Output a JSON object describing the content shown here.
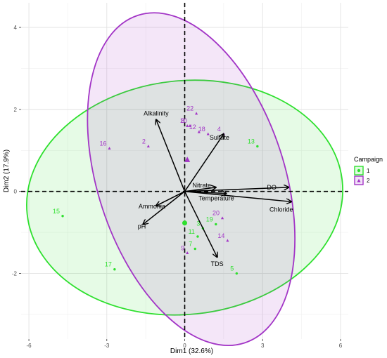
{
  "chart_data": {
    "type": "scatter",
    "title": "",
    "xlabel": "Dim1 (32.6%)",
    "ylabel": "Dim2 (17.9%)",
    "xlim": [
      -6.3,
      6.3
    ],
    "ylim": [
      -3.6,
      4.6
    ],
    "x_ticks": [
      -6,
      -3,
      0,
      3,
      6
    ],
    "y_ticks": [
      -2,
      0,
      2,
      4
    ],
    "grid": true,
    "legend": {
      "title": "Campaign",
      "position": "right"
    },
    "colors": {
      "campaign1": "#2ee02e",
      "campaign2": "#a234c6"
    },
    "series": [
      {
        "name": "1",
        "marker": "circle",
        "points": [
          {
            "label": "15",
            "x": -4.7,
            "y": -0.6
          },
          {
            "label": "17",
            "x": -2.7,
            "y": -1.9
          },
          {
            "label": "13",
            "x": 2.8,
            "y": 1.1
          },
          {
            "label": "5",
            "x": 2.0,
            "y": -2.0
          },
          {
            "label": "3",
            "x": 0.7,
            "y": -0.9
          },
          {
            "label": "19",
            "x": 1.2,
            "y": -0.8
          },
          {
            "label": "11",
            "x": 0.5,
            "y": -1.1
          },
          {
            "label": "7",
            "x": 0.4,
            "y": -1.4
          }
        ],
        "centroid": {
          "x": 0.0,
          "y": -0.77
        },
        "ellipse": {
          "cx": 0.0,
          "cy": -0.15,
          "rx": 6.1,
          "ry": 2.85,
          "angle": 6
        }
      },
      {
        "name": "2",
        "marker": "triangle",
        "points": [
          {
            "label": "16",
            "x": -2.9,
            "y": 1.05
          },
          {
            "label": "2",
            "x": -1.4,
            "y": 1.1
          },
          {
            "label": "22",
            "x": 0.45,
            "y": 1.9
          },
          {
            "label": "8",
            "x": 0.1,
            "y": 1.6
          },
          {
            "label": "10",
            "x": 0.2,
            "y": 1.6
          },
          {
            "label": "12",
            "x": 0.55,
            "y": 1.45
          },
          {
            "label": "18",
            "x": 0.9,
            "y": 1.4
          },
          {
            "label": "4",
            "x": 1.5,
            "y": 1.4
          },
          {
            "label": "20",
            "x": 1.45,
            "y": -0.65
          },
          {
            "label": "14",
            "x": 1.65,
            "y": -1.2
          },
          {
            "label": "9",
            "x": 0.1,
            "y": -1.5
          }
        ],
        "centroid": {
          "x": 0.1,
          "y": 0.77
        },
        "ellipse": {
          "cx": 0.25,
          "cy": 0.3,
          "rx": 3.6,
          "ry": 4.2,
          "angle": 18
        }
      }
    ],
    "variables": [
      {
        "label": "Alkalinity",
        "x": -1.1,
        "y": 1.75
      },
      {
        "label": "Sulfate",
        "x": 1.5,
        "y": 1.4
      },
      {
        "label": "Nitrate",
        "x": 1.2,
        "y": 0.1
      },
      {
        "label": "DO",
        "x": 4.0,
        "y": 0.1
      },
      {
        "label": "Temperature",
        "x": 1.6,
        "y": -0.05
      },
      {
        "label": "Chloride",
        "x": 4.1,
        "y": -0.25
      },
      {
        "label": "Ammonia",
        "x": -1.1,
        "y": -0.35
      },
      {
        "label": "pH",
        "x": -1.6,
        "y": -0.8
      },
      {
        "label": "TDS",
        "x": 1.25,
        "y": -1.6
      }
    ]
  }
}
